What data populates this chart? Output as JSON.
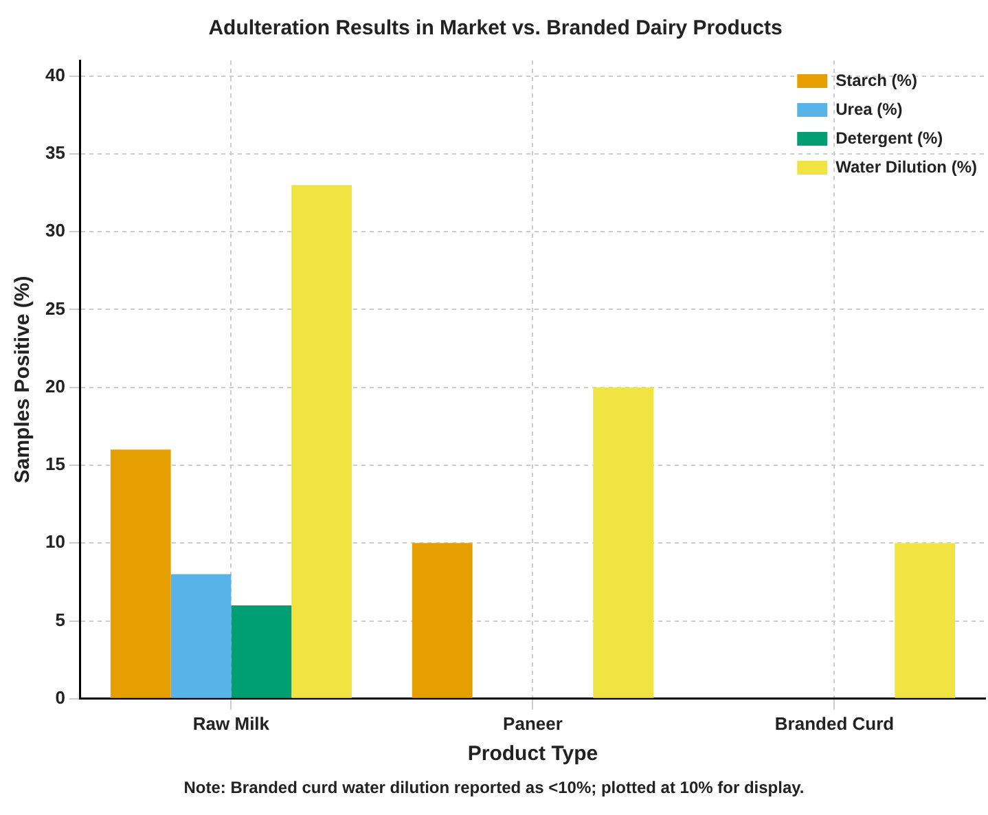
{
  "chart_data": {
    "type": "bar",
    "title": "Adulteration Results in Market vs. Branded Dairy Products",
    "xlabel": "Product Type",
    "ylabel": "Samples Positive (%)",
    "categories": [
      "Raw Milk",
      "Paneer",
      "Branded Curd"
    ],
    "series": [
      {
        "name": "Starch (%)",
        "color": "#e69f00",
        "values": [
          16,
          10,
          0
        ]
      },
      {
        "name": "Urea (%)",
        "color": "#56b4e9",
        "values": [
          8,
          0,
          0
        ]
      },
      {
        "name": "Detergent (%)",
        "color": "#009e73",
        "values": [
          6,
          0,
          0
        ]
      },
      {
        "name": "Water Dilution (%)",
        "color": "#f0e442",
        "values": [
          33,
          20,
          10
        ]
      }
    ],
    "ylim": [
      0,
      41
    ],
    "yticks": [
      0,
      5,
      10,
      15,
      20,
      25,
      30,
      35,
      40
    ],
    "grid": true,
    "legend": "top right",
    "annotations": [
      "Note: Branded curd water dilution reported as <10%; plotted at 10% for display."
    ]
  }
}
